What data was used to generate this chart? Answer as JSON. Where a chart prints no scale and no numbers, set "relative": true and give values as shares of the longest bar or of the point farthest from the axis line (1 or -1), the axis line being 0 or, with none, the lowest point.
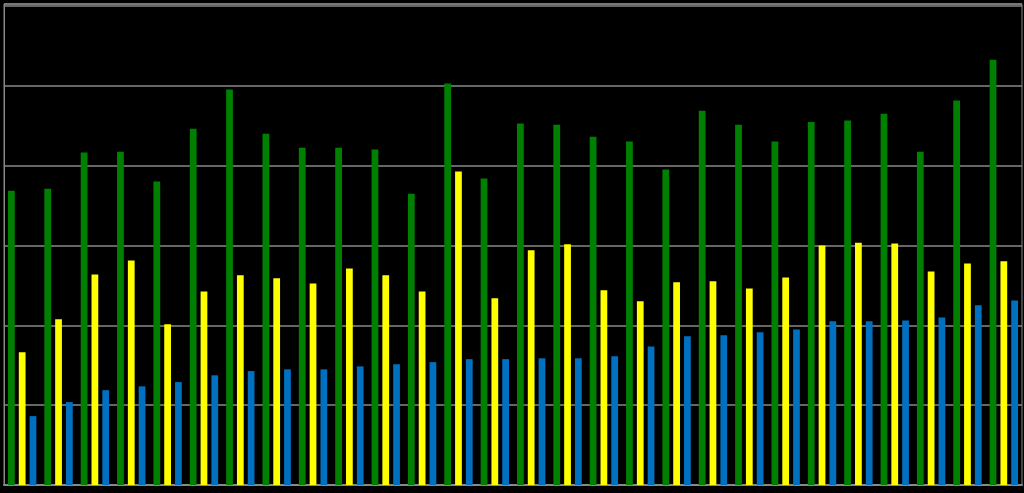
{
  "chart_data": {
    "type": "bar",
    "relative": true,
    "grid": "y",
    "categories": [
      null,
      null,
      null,
      null,
      null,
      null,
      null,
      null,
      null,
      null,
      null,
      null,
      null,
      null,
      null,
      null,
      null,
      null,
      null,
      null,
      null,
      null,
      null,
      null,
      null,
      null,
      null,
      null
    ],
    "series": [
      {
        "color": "#008000",
        "values": [
          0.692,
          0.697,
          0.782,
          0.784,
          0.714,
          0.838,
          0.93,
          0.826,
          0.793,
          0.793,
          0.789,
          0.685,
          0.944,
          0.721,
          0.85,
          0.847,
          0.819,
          0.808,
          0.742,
          0.88,
          0.847,
          0.808,
          0.854,
          0.857,
          0.873,
          0.784,
          0.904,
          1
        ]
      },
      {
        "color": "#ffff00",
        "values": [
          0.312,
          0.39,
          0.495,
          0.528,
          0.378,
          0.455,
          0.493,
          0.486,
          0.474,
          0.509,
          0.493,
          0.455,
          0.737,
          0.439,
          0.552,
          0.566,
          0.458,
          0.432,
          0.477,
          0.479,
          0.462,
          0.488,
          0.563,
          0.57,
          0.568,
          0.502,
          0.521,
          0.526
        ]
      },
      {
        "color": "#0070c0",
        "values": [
          0.162,
          0.195,
          0.223,
          0.232,
          0.242,
          0.258,
          0.268,
          0.272,
          0.272,
          0.279,
          0.284,
          0.289,
          0.296,
          0.296,
          0.298,
          0.298,
          0.303,
          0.326,
          0.35,
          0.352,
          0.359,
          0.366,
          0.385,
          0.385,
          0.387,
          0.394,
          0.423,
          0.434
        ]
      }
    ]
  }
}
